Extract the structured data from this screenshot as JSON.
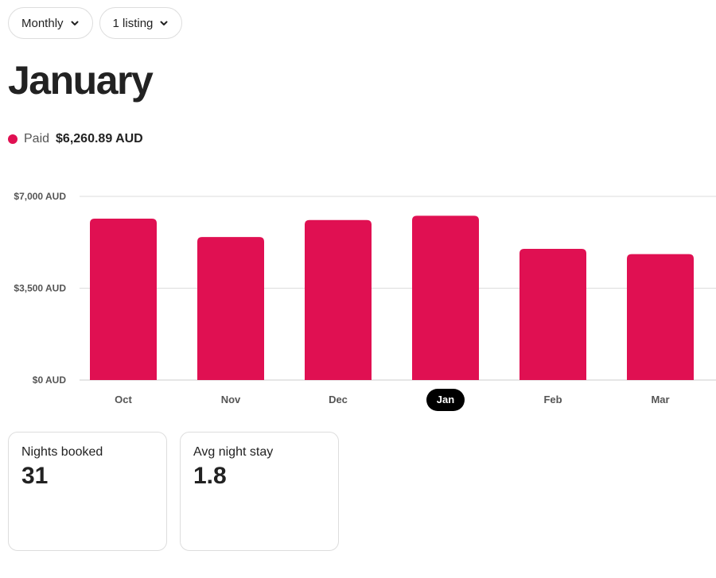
{
  "filters": {
    "period_label": "Monthly",
    "listing_label": "1 listing"
  },
  "header": {
    "month": "January"
  },
  "summary": {
    "paid_label": "Paid",
    "paid_amount": "$6,260.89 AUD",
    "paid_color": "#e01052"
  },
  "chart_data": {
    "type": "bar",
    "categories": [
      "Oct",
      "Nov",
      "Dec",
      "Jan",
      "Feb",
      "Mar"
    ],
    "values": [
      6150,
      5450,
      6100,
      6260.89,
      5000,
      4800
    ],
    "selected": "Jan",
    "y_ticks": [
      {
        "value": 7000,
        "label": "$7,000 AUD"
      },
      {
        "value": 3500,
        "label": "$3,500 AUD"
      },
      {
        "value": 0,
        "label": "$0 AUD"
      }
    ],
    "ylim": [
      0,
      7000
    ],
    "bar_color": "#e01052",
    "selected_label_bg": "#000000",
    "grid": true,
    "title": "",
    "xlabel": "",
    "ylabel": ""
  },
  "stats": [
    {
      "label": "Nights booked",
      "value": "31"
    },
    {
      "label": "Avg night stay",
      "value": "1.8"
    }
  ]
}
